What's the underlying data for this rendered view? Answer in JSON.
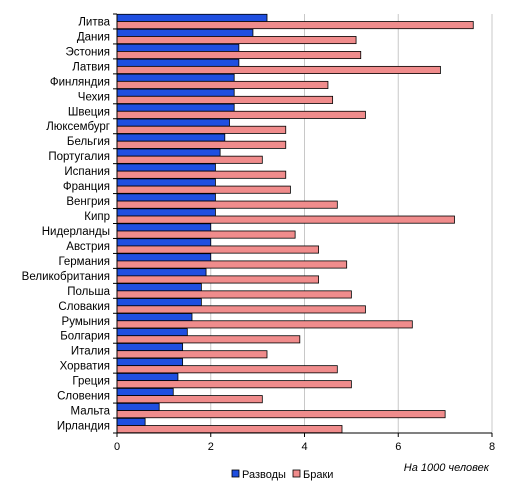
{
  "chart_data": {
    "type": "bar",
    "orientation": "horizontal",
    "categories": [
      "Литва",
      "Дания",
      "Эстония",
      "Латвия",
      "Финляндия",
      "Чехия",
      "Швеция",
      "Люксембург",
      "Бельгия",
      "Португалия",
      "Испания",
      "Франция",
      "Венгрия",
      "Кипр",
      "Нидерланды",
      "Австрия",
      "Германия",
      "Великобритания",
      "Польша",
      "Словакия",
      "Румыния",
      "Болгария",
      "Италия",
      "Хорватия",
      "Греция",
      "Словения",
      "Мальта",
      "Ирландия"
    ],
    "series": [
      {
        "name": "Разводы",
        "color": "#1f4fe0",
        "values": [
          3.2,
          2.9,
          2.6,
          2.6,
          2.5,
          2.5,
          2.5,
          2.4,
          2.3,
          2.2,
          2.1,
          2.1,
          2.1,
          2.1,
          2.0,
          2.0,
          2.0,
          1.9,
          1.8,
          1.8,
          1.6,
          1.5,
          1.4,
          1.4,
          1.3,
          1.2,
          0.9,
          0.6
        ]
      },
      {
        "name": "Браки",
        "color": "#f08c8c",
        "values": [
          7.6,
          5.1,
          5.2,
          6.9,
          4.5,
          4.6,
          5.3,
          3.6,
          3.6,
          3.1,
          3.6,
          3.7,
          4.7,
          7.2,
          3.8,
          4.3,
          4.9,
          4.3,
          5.0,
          5.3,
          6.3,
          3.9,
          3.2,
          4.7,
          5.0,
          3.1,
          7.0,
          4.8
        ]
      }
    ],
    "xlim": [
      0,
      8
    ],
    "xticks": [
      "0",
      "2",
      "4",
      "6",
      "8"
    ],
    "grid": true,
    "legend_position": "bottom",
    "note": "На 1000 человек"
  }
}
